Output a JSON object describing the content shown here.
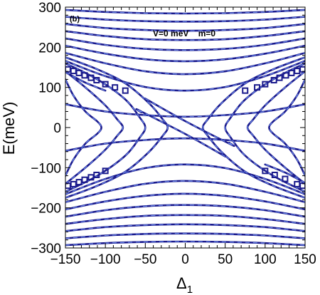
{
  "chart_data": {
    "type": "line",
    "panel_label": "(b)",
    "annotation": "V=0 meV    m=0",
    "xlabel": "Δ",
    "xlabel_subscript": "1",
    "ylabel": "E(meV)",
    "xlim": [
      -150,
      150
    ],
    "ylim": [
      -300,
      300
    ],
    "xticks": [
      -150,
      -100,
      -50,
      0,
      50,
      100,
      150
    ],
    "yticks": [
      -300,
      -200,
      -100,
      0,
      100,
      200,
      300
    ],
    "xtick_labels": [
      "−150",
      "−100",
      "−50",
      "0",
      "50",
      "100",
      "150"
    ],
    "ytick_labels": [
      "−300",
      "−200",
      "−100",
      "0",
      "100",
      "200",
      "300"
    ],
    "grid": false,
    "series": [
      {
        "x": [
          -150,
          -100,
          -50,
          0,
          50,
          100,
          150
        ],
        "y": [
          -58,
          -40,
          -31,
          -27,
          -31,
          -40,
          -58
        ]
      },
      {
        "x": [
          -150,
          -100,
          -50,
          0,
          50,
          100,
          150
        ],
        "y": [
          58,
          40,
          31,
          27,
          31,
          40,
          58
        ]
      },
      {
        "x": [
          -150,
          -100,
          -50,
          0,
          50,
          100,
          150
        ],
        "y": [
          -166,
          -128,
          -101,
          -92,
          -101,
          -128,
          -166
        ]
      },
      {
        "x": [
          -150,
          -100,
          -50,
          0,
          50,
          100,
          150
        ],
        "y": [
          166,
          128,
          101,
          92,
          101,
          128,
          166
        ]
      },
      {
        "x": [
          -150,
          -100,
          -50,
          0,
          50,
          100,
          150
        ],
        "y": [
          -186,
          -160,
          -140,
          -133,
          -140,
          -160,
          -186
        ]
      },
      {
        "x": [
          -150,
          -100,
          -50,
          0,
          50,
          100,
          150
        ],
        "y": [
          186,
          160,
          140,
          133,
          140,
          160,
          186
        ]
      },
      {
        "x": [
          -150,
          -100,
          -50,
          0,
          50,
          100,
          150
        ],
        "y": [
          -204,
          -184,
          -170,
          -165,
          -170,
          -184,
          -204
        ]
      },
      {
        "x": [
          -150,
          -100,
          -50,
          0,
          50,
          100,
          150
        ],
        "y": [
          204,
          184,
          170,
          165,
          170,
          184,
          204
        ]
      },
      {
        "x": [
          -150,
          -100,
          -50,
          0,
          50,
          100,
          150
        ],
        "y": [
          -222,
          -206,
          -196,
          -193,
          -196,
          -206,
          -222
        ]
      },
      {
        "x": [
          -150,
          -100,
          -50,
          0,
          50,
          100,
          150
        ],
        "y": [
          222,
          206,
          196,
          193,
          196,
          206,
          222
        ]
      },
      {
        "x": [
          -150,
          -100,
          -50,
          0,
          50,
          100,
          150
        ],
        "y": [
          -240,
          -228,
          -220,
          -218,
          -220,
          -228,
          -240
        ]
      },
      {
        "x": [
          -150,
          -100,
          -50,
          0,
          50,
          100,
          150
        ],
        "y": [
          240,
          228,
          220,
          218,
          220,
          228,
          240
        ]
      },
      {
        "x": [
          -150,
          -100,
          -50,
          0,
          50,
          100,
          150
        ],
        "y": [
          -258,
          -248,
          -243,
          -241,
          -243,
          -248,
          -258
        ]
      },
      {
        "x": [
          -150,
          -100,
          -50,
          0,
          50,
          100,
          150
        ],
        "y": [
          258,
          248,
          243,
          241,
          243,
          248,
          258
        ]
      },
      {
        "x": [
          -150,
          -100,
          -50,
          0,
          50,
          100,
          150
        ],
        "y": [
          -276,
          -269,
          -265,
          -264,
          -265,
          -269,
          -276
        ]
      },
      {
        "x": [
          -150,
          -100,
          -50,
          0,
          50,
          100,
          150
        ],
        "y": [
          276,
          269,
          265,
          264,
          265,
          269,
          276
        ]
      },
      {
        "x": [
          -150,
          -100,
          -50,
          0,
          50,
          100,
          150
        ],
        "y": [
          -293,
          -288,
          -285,
          -284,
          -285,
          -288,
          -293
        ]
      },
      {
        "x": [
          -150,
          -100,
          -50,
          0,
          50,
          100,
          150
        ],
        "y": [
          293,
          288,
          285,
          284,
          285,
          288,
          293
        ]
      },
      {
        "x": [
          -150,
          -140,
          -125,
          -110,
          -105,
          -110,
          -125,
          -140,
          -150
        ],
        "y": [
          -120,
          -80,
          -40,
          -15,
          0,
          15,
          40,
          80,
          120
        ]
      },
      {
        "x": [
          150,
          140,
          125,
          110,
          105,
          110,
          125,
          140,
          150
        ],
        "y": [
          -120,
          -80,
          -40,
          -15,
          0,
          15,
          40,
          80,
          120
        ]
      },
      {
        "x": [
          -150,
          -125,
          -100,
          -85,
          -78,
          -85,
          -100,
          -125,
          -150
        ],
        "y": [
          -140,
          -100,
          -55,
          -20,
          0,
          20,
          55,
          100,
          140
        ]
      },
      {
        "x": [
          150,
          125,
          100,
          85,
          78,
          85,
          100,
          125,
          150
        ],
        "y": [
          -140,
          -100,
          -55,
          -20,
          0,
          20,
          55,
          100,
          140
        ]
      },
      {
        "x": [
          -150,
          -110,
          -75,
          -57,
          -50,
          -57,
          -75,
          -110,
          -150
        ],
        "y": [
          -160,
          -120,
          -70,
          -25,
          0,
          25,
          70,
          120,
          160
        ]
      },
      {
        "x": [
          150,
          110,
          75,
          57,
          50,
          57,
          75,
          110,
          150
        ],
        "y": [
          -160,
          -120,
          -70,
          -25,
          0,
          25,
          70,
          120,
          160
        ]
      },
      {
        "x": [
          -150,
          -110,
          -75,
          -45,
          -28,
          -22,
          -28,
          -45,
          -75,
          -110,
          -150
        ],
        "y": [
          -175,
          -145,
          -110,
          -60,
          -20,
          0,
          20,
          60,
          110,
          145,
          175
        ]
      },
      {
        "x": [
          150,
          110,
          75,
          45,
          28,
          22,
          28,
          45,
          75,
          110,
          150
        ],
        "y": [
          -175,
          -145,
          -110,
          -60,
          -20,
          0,
          20,
          60,
          110,
          145,
          175
        ]
      },
      {
        "x": [
          -150,
          -125,
          -100
        ],
        "y": [
          138,
          112,
          92
        ]
      },
      {
        "x": [
          150,
          125,
          100
        ],
        "y": [
          -138,
          -112,
          -92
        ]
      },
      {
        "x": [
          -50,
          0,
          55,
          60,
          55
        ],
        "y": [
          72,
          16,
          -40,
          -44,
          -38
        ]
      },
      {
        "x": [
          50,
          0,
          -55,
          -60,
          -55
        ],
        "y": [
          -72,
          -16,
          40,
          44,
          38
        ]
      }
    ],
    "markers": [
      {
        "x": -147,
        "y": 145
      },
      {
        "x": -140,
        "y": 141
      },
      {
        "x": -133,
        "y": 136
      },
      {
        "x": -126,
        "y": 130
      },
      {
        "x": -118,
        "y": 124
      },
      {
        "x": -111,
        "y": 118
      },
      {
        "x": -100,
        "y": 108
      },
      {
        "x": -88,
        "y": 100
      },
      {
        "x": -75,
        "y": 92
      },
      {
        "x": 147,
        "y": 145
      },
      {
        "x": 140,
        "y": 141
      },
      {
        "x": 133,
        "y": 136
      },
      {
        "x": 126,
        "y": 130
      },
      {
        "x": 118,
        "y": 124
      },
      {
        "x": 111,
        "y": 118
      },
      {
        "x": 100,
        "y": 108
      },
      {
        "x": 90,
        "y": 100
      },
      {
        "x": 75,
        "y": 92
      },
      {
        "x": -147,
        "y": -145
      },
      {
        "x": -140,
        "y": -141
      },
      {
        "x": -133,
        "y": -136
      },
      {
        "x": -126,
        "y": -130
      },
      {
        "x": -118,
        "y": -124
      },
      {
        "x": -111,
        "y": -118
      },
      {
        "x": -100,
        "y": -108
      },
      {
        "x": 147,
        "y": -145
      },
      {
        "x": 140,
        "y": -141
      },
      {
        "x": 125,
        "y": -128
      },
      {
        "x": 112,
        "y": -118
      },
      {
        "x": 100,
        "y": -108
      }
    ],
    "colors": {
      "line": "#1a1a8c",
      "dash": "#6f8ff0",
      "marker": "#1a1a8c"
    }
  }
}
